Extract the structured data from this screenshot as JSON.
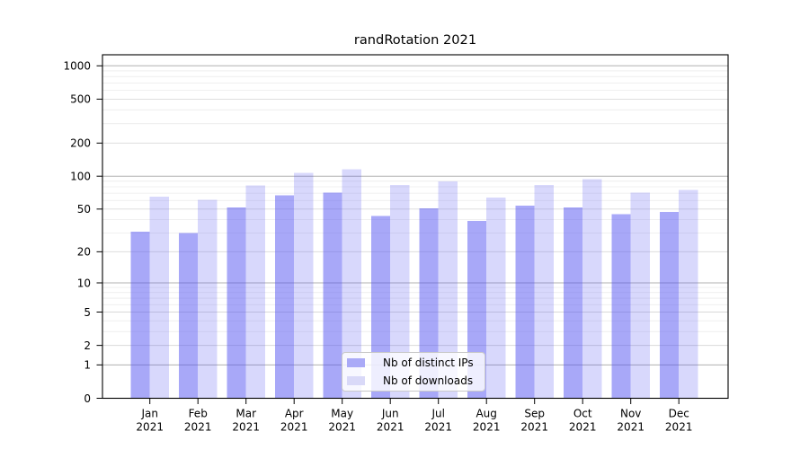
{
  "chart_data": {
    "type": "bar",
    "title": "randRotation 2021",
    "categories": [
      "Jan 2021",
      "Feb 2021",
      "Mar 2021",
      "Apr 2021",
      "May 2021",
      "Jun 2021",
      "Jul 2021",
      "Aug 2021",
      "Sep 2021",
      "Oct 2021",
      "Nov 2021",
      "Dec 2021"
    ],
    "series": [
      {
        "name": "Nb of distinct IPs",
        "color_solid": "#aaaaf7",
        "color_rgba": "rgba(85,85,242,0.51)",
        "values": [
          31,
          30,
          52,
          67,
          71,
          43,
          51,
          39,
          54,
          52,
          45,
          47
        ]
      },
      {
        "name": "Nb of downloads",
        "color_solid": "#d9d9f8",
        "color_rgba": "rgba(85,85,242,0.23)",
        "values": [
          65,
          61,
          82,
          107,
          116,
          83,
          90,
          64,
          83,
          94,
          71,
          75
        ]
      }
    ],
    "xlabel": "",
    "ylabel": "",
    "yscale": "log1p",
    "ylim": [
      0,
      1260
    ],
    "yticks": [
      0,
      1,
      2,
      5,
      10,
      20,
      50,
      100,
      200,
      500,
      1000
    ],
    "ytick_labels": [
      "0",
      "1",
      "2",
      "5",
      "10",
      "20",
      "50",
      "100",
      "200",
      "500",
      "1000"
    ],
    "grid": "on",
    "legend_position": "lower-center",
    "colors": {
      "grid_major": "#b0b0b0",
      "grid_mid": "#d9d9d9",
      "grid_minor": "#ebebeb",
      "axis_frame": "#000000",
      "tick_text": "#000000",
      "legend_border": "#c9c9c9",
      "legend_background": "rgba(255,255,255,0.8)"
    }
  }
}
